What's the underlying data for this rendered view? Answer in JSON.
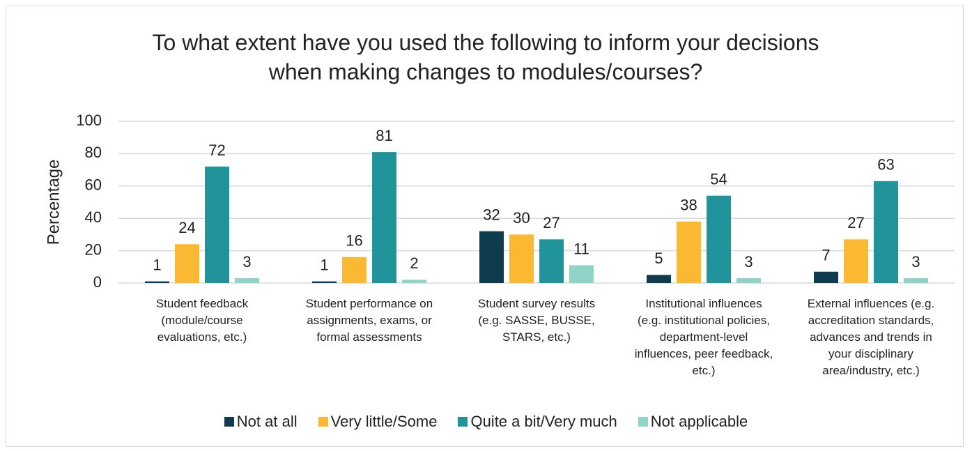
{
  "chart_data": {
    "type": "bar",
    "title": "To what extent have you used the following to inform your decisions when making changes to modules/courses?",
    "ylabel": "Percentage",
    "categories": [
      "Student feedback (module/course evaluations, etc.)",
      "Student performance on assignments, exams, or formal assessments",
      "Student survey results (e.g. SASSE, BUSSE, STARS, etc.)",
      "Institutional influences (e.g. institutional policies, department-level influences, peer feedback, etc.)",
      "External influences (e.g. accreditation standards, advances and trends in your disciplinary area/industry, etc.)"
    ],
    "series": [
      {
        "name": "Not at all",
        "color": "#0e3b4e",
        "values": [
          1,
          1,
          32,
          5,
          7
        ]
      },
      {
        "name": "Very little/Some",
        "color": "#fbb832",
        "values": [
          24,
          16,
          30,
          38,
          27
        ]
      },
      {
        "name": "Quite a bit/Very much",
        "color": "#21939a",
        "values": [
          72,
          81,
          27,
          54,
          63
        ]
      },
      {
        "name": "Not applicable",
        "color": "#8fd4c6",
        "values": [
          3,
          2,
          11,
          3,
          3
        ]
      }
    ],
    "ylim": [
      0,
      100
    ],
    "yticks": [
      0,
      20,
      40,
      60,
      80,
      100
    ],
    "grid": true,
    "legend": "bottom"
  }
}
